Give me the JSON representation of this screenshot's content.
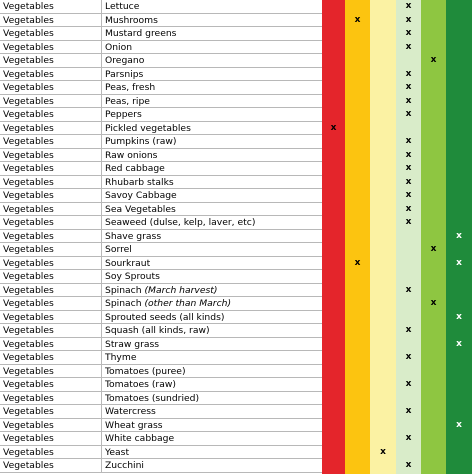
{
  "table": {
    "rows": [
      {
        "category": "Vegetables",
        "name": "Lettuce",
        "cells": [
          null,
          null,
          null,
          "x",
          null,
          null
        ]
      },
      {
        "category": "Vegetables",
        "name": "Mushrooms",
        "cells": [
          null,
          "x",
          null,
          "x",
          null,
          null
        ]
      },
      {
        "category": "Vegetables",
        "name": "Mustard greens",
        "cells": [
          null,
          null,
          null,
          "x",
          null,
          null
        ]
      },
      {
        "category": "Vegetables",
        "name": "Onion",
        "cells": [
          null,
          null,
          null,
          "x",
          null,
          null
        ]
      },
      {
        "category": "Vegetables",
        "name": "Oregano",
        "cells": [
          null,
          null,
          null,
          null,
          "x",
          null
        ]
      },
      {
        "category": "Vegetables",
        "name": "Parsnips",
        "cells": [
          null,
          null,
          null,
          "x",
          null,
          null
        ]
      },
      {
        "category": "Vegetables",
        "name": "Peas, fresh",
        "cells": [
          null,
          null,
          null,
          "x",
          null,
          null
        ]
      },
      {
        "category": "Vegetables",
        "name": "Peas, ripe",
        "cells": [
          null,
          null,
          null,
          "x",
          null,
          null
        ]
      },
      {
        "category": "Vegetables",
        "name": "Peppers",
        "cells": [
          null,
          null,
          null,
          "x",
          null,
          null
        ]
      },
      {
        "category": "Vegetables",
        "name": "Pickled vegetables",
        "cells": [
          "x",
          null,
          null,
          null,
          null,
          null
        ]
      },
      {
        "category": "Vegetables",
        "name": "Pumpkins (raw)",
        "cells": [
          null,
          null,
          null,
          "x",
          null,
          null
        ]
      },
      {
        "category": "Vegetables",
        "name": "Raw onions",
        "cells": [
          null,
          null,
          null,
          "x",
          null,
          null
        ]
      },
      {
        "category": "Vegetables",
        "name": "Red cabbage",
        "cells": [
          null,
          null,
          null,
          "x",
          null,
          null
        ]
      },
      {
        "category": "Vegetables",
        "name": "Rhubarb stalks",
        "cells": [
          null,
          null,
          null,
          "x",
          null,
          null
        ]
      },
      {
        "category": "Vegetables",
        "name": "Savoy Cabbage",
        "cells": [
          null,
          null,
          null,
          "x",
          null,
          null
        ]
      },
      {
        "category": "Vegetables",
        "name": "Sea Vegetables",
        "cells": [
          null,
          null,
          null,
          "x",
          null,
          null
        ]
      },
      {
        "category": "Vegetables",
        "name": "Seaweed (dulse, kelp, laver, etc)",
        "cells": [
          null,
          null,
          null,
          "x",
          null,
          null
        ]
      },
      {
        "category": "Vegetables",
        "name": "Shave grass",
        "cells": [
          null,
          null,
          null,
          null,
          null,
          "x"
        ]
      },
      {
        "category": "Vegetables",
        "name": "Sorrel",
        "cells": [
          null,
          null,
          null,
          null,
          "x",
          null
        ]
      },
      {
        "category": "Vegetables",
        "name": "Sourkraut",
        "cells": [
          null,
          "x",
          null,
          null,
          null,
          "x"
        ]
      },
      {
        "category": "Vegetables",
        "name": "Soy Sprouts",
        "cells": [
          null,
          null,
          null,
          null,
          null,
          null
        ]
      },
      {
        "category": "Vegetables",
        "name": "Spinach",
        "note": "(March harvest)",
        "cells": [
          null,
          null,
          null,
          "x",
          null,
          null
        ]
      },
      {
        "category": "Vegetables",
        "name": "Spinach",
        "note": "(other than March)",
        "cells": [
          null,
          null,
          null,
          null,
          "x",
          null
        ]
      },
      {
        "category": "Vegetables",
        "name": "Sprouted seeds (all kinds)",
        "cells": [
          null,
          null,
          null,
          null,
          null,
          "x"
        ]
      },
      {
        "category": "Vegetables",
        "name": "Squash (all kinds, raw)",
        "cells": [
          null,
          null,
          null,
          "x",
          null,
          null
        ]
      },
      {
        "category": "Vegetables",
        "name": "Straw grass",
        "cells": [
          null,
          null,
          null,
          null,
          null,
          "x"
        ]
      },
      {
        "category": "Vegetables",
        "name": "Thyme",
        "cells": [
          null,
          null,
          null,
          "x",
          null,
          null
        ]
      },
      {
        "category": "Vegetables",
        "name": "Tomatoes (puree)",
        "cells": [
          null,
          null,
          null,
          null,
          null,
          null
        ]
      },
      {
        "category": "Vegetables",
        "name": "Tomatoes (raw)",
        "cells": [
          null,
          null,
          null,
          "x",
          null,
          null
        ]
      },
      {
        "category": "Vegetables",
        "name": "Tomatoes (sundried)",
        "cells": [
          null,
          null,
          null,
          null,
          null,
          null
        ]
      },
      {
        "category": "Vegetables",
        "name": "Watercress",
        "cells": [
          null,
          null,
          null,
          "x",
          null,
          null
        ]
      },
      {
        "category": "Vegetables",
        "name": "Wheat grass",
        "cells": [
          null,
          null,
          null,
          null,
          null,
          "x"
        ]
      },
      {
        "category": "Vegetables",
        "name": "White cabbage",
        "cells": [
          null,
          null,
          null,
          "x",
          null,
          null
        ]
      },
      {
        "category": "Vegetables",
        "name": "Yeast",
        "cells": [
          null,
          null,
          "x",
          null,
          null,
          null
        ]
      },
      {
        "category": "Vegetables",
        "name": "Zucchini",
        "cells": [
          null,
          null,
          null,
          "x",
          null,
          null
        ]
      }
    ]
  }
}
